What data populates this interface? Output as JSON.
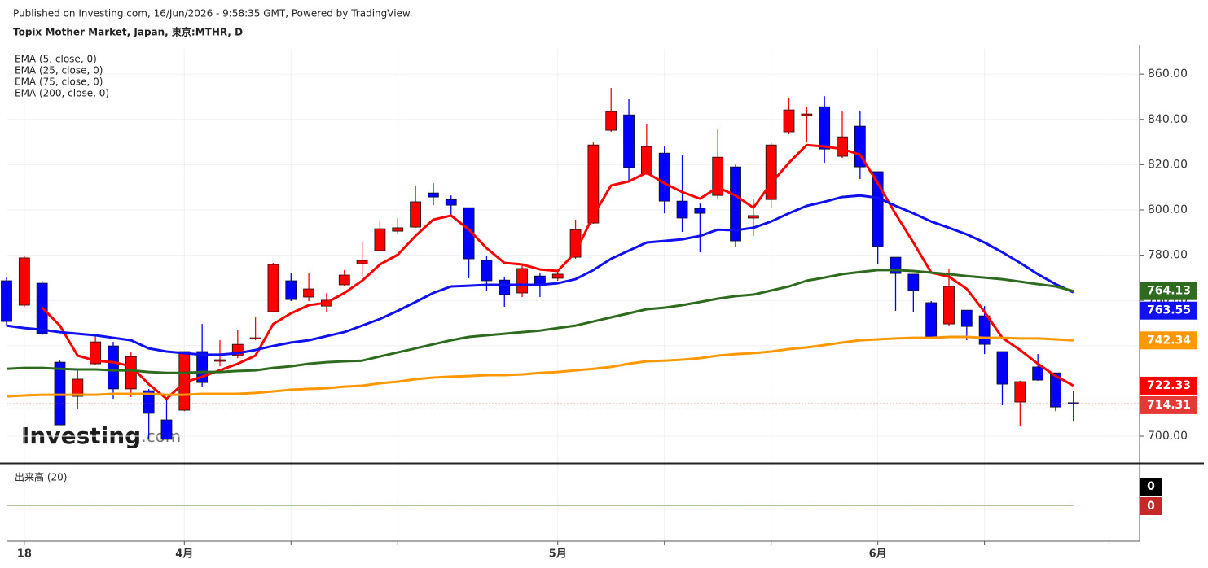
{
  "header": {
    "published": "Published on Investing.com, 16/Jun/2026 - 9:58:35 GMT, Powered by TradingView."
  },
  "watermark": {
    "brand": "Investing",
    "suffix": ".com"
  },
  "chart_data": {
    "type": "candlestick",
    "title": "Topix Mother Market, Japan, 東京:MTHR, D",
    "categories": [
      null,
      "18",
      null,
      null,
      null,
      null,
      null,
      null,
      null,
      null,
      "4月",
      null,
      null,
      null,
      null,
      null,
      null,
      null,
      null,
      null,
      null,
      null,
      null,
      null,
      null,
      null,
      null,
      null,
      null,
      null,
      null,
      "5月",
      null,
      null,
      null,
      null,
      null,
      null,
      null,
      null,
      null,
      null,
      null,
      null,
      null,
      null,
      null,
      null,
      null,
      "6月",
      null,
      null,
      null,
      null,
      null,
      null,
      null,
      null,
      null,
      null,
      null
    ],
    "open": [
      768.7,
      757.9,
      767.6,
      732.7,
      717.6,
      732.0,
      739.9,
      720.9,
      720.1,
      707.2,
      711.5,
      737.4,
      733.1,
      735.6,
      743.5,
      755.0,
      768.7,
      761.5,
      757.5,
      766.9,
      776.2,
      782.0,
      790.6,
      792.4,
      807.5,
      804.6,
      801.0,
      777.7,
      769.0,
      763.3,
      770.8,
      769.8,
      779.1,
      794.2,
      835.2,
      842.0,
      816.1,
      825.1,
      803.9,
      800.7,
      806.4,
      819.0,
      796.4,
      804.6,
      834.5,
      841.7,
      845.6,
      823.7,
      837.0,
      816.9,
      779.1,
      771.6,
      759.0,
      749.6,
      755.7,
      753.2,
      737.4,
      715.1,
      730.6,
      728.0,
      714.8
    ],
    "high": [
      770.5,
      779.5,
      768.7,
      733.4,
      729.1,
      744.2,
      741.7,
      737.4,
      720.9,
      716.5,
      737.4,
      749.6,
      742.4,
      747.1,
      752.5,
      776.6,
      772.3,
      772.3,
      763.3,
      773.4,
      785.6,
      795.3,
      796.4,
      810.8,
      811.8,
      806.4,
      801.0,
      779.5,
      770.5,
      775.9,
      771.9,
      773.0,
      795.7,
      829.8,
      853.9,
      848.9,
      838.1,
      828.0,
      824.4,
      802.8,
      835.9,
      820.0,
      804.6,
      829.5,
      849.6,
      845.3,
      850.3,
      843.5,
      843.5,
      816.9,
      779.1,
      771.6,
      759.7,
      774.1,
      755.7,
      757.5,
      737.4,
      724.5,
      736.3,
      728.0,
      719.8
    ],
    "low": [
      748.9,
      757.2,
      744.6,
      705.0,
      712.2,
      731.6,
      716.5,
      717.3,
      698.6,
      698.6,
      711.1,
      721.9,
      730.9,
      734.5,
      742.4,
      754.7,
      759.7,
      759.7,
      754.7,
      766.2,
      770.5,
      781.6,
      789.2,
      792.1,
      802.1,
      797.5,
      769.8,
      764.0,
      757.2,
      761.5,
      761.5,
      768.7,
      778.4,
      793.9,
      834.5,
      812.2,
      815.4,
      798.5,
      790.3,
      781.3,
      804.6,
      783.8,
      788.5,
      800.7,
      833.4,
      829.8,
      820.8,
      823.0,
      813.6,
      775.9,
      755.4,
      755.0,
      743.5,
      748.9,
      742.4,
      736.3,
      713.7,
      704.7,
      724.5,
      711.1,
      706.8
    ],
    "close": [
      750.7,
      778.8,
      745.3,
      705.0,
      725.2,
      741.7,
      720.9,
      735.2,
      710.1,
      698.6,
      737.4,
      723.7,
      733.8,
      740.6,
      743.5,
      775.9,
      760.4,
      765.1,
      760.1,
      771.2,
      777.7,
      791.7,
      792.1,
      803.6,
      805.7,
      802.1,
      778.4,
      768.7,
      762.6,
      774.1,
      766.9,
      771.6,
      791.3,
      828.7,
      843.5,
      818.7,
      828.0,
      803.9,
      796.4,
      798.5,
      823.3,
      786.3,
      797.5,
      828.7,
      844.2,
      842.4,
      826.9,
      832.3,
      819.0,
      783.8,
      771.9,
      764.4,
      743.9,
      766.2,
      748.5,
      740.6,
      723.0,
      724.1,
      724.8,
      712.9,
      714.31
    ],
    "up_color": "#ff0000",
    "down_color": "#0000ff",
    "last_price_color": "#e53935",
    "lines": [
      {
        "name": "EMA (5, close, 0)",
        "color": "#ff0000",
        "values": [
          null,
          null,
          756.8,
          748.9,
          735.6,
          733.4,
          732.7,
          730.9,
          723.0,
          716.5,
          723.7,
          726.3,
          729.1,
          732.0,
          735.6,
          749.6,
          754.3,
          757.9,
          759.0,
          763.3,
          768.7,
          775.9,
          780.2,
          788.5,
          795.7,
          797.5,
          791.3,
          783.1,
          776.6,
          775.9,
          773.7,
          773.0,
          781.3,
          797.5,
          810.8,
          812.6,
          816.5,
          811.8,
          807.9,
          805.0,
          810.0,
          806.4,
          801.0,
          811.8,
          820.8,
          828.7,
          828.0,
          826.9,
          824.4,
          811.8,
          798.2,
          785.6,
          772.3,
          770.5,
          765.1,
          755.0,
          743.5,
          738.1,
          732.0,
          726.6,
          722.33
        ]
      },
      {
        "name": "EMA (25, close, 0)",
        "color": "#1010f0",
        "values": [
          748.9,
          747.8,
          747.1,
          746.0,
          745.3,
          744.6,
          743.5,
          742.4,
          738.8,
          737.4,
          736.7,
          736.0,
          736.0,
          736.7,
          738.1,
          739.9,
          741.4,
          742.4,
          744.2,
          746.0,
          748.9,
          751.8,
          755.4,
          759.3,
          763.3,
          766.2,
          766.5,
          766.9,
          766.9,
          766.9,
          766.9,
          767.6,
          769.4,
          773.4,
          778.4,
          782.0,
          785.6,
          786.3,
          787.0,
          788.5,
          791.3,
          791.0,
          792.1,
          794.9,
          798.5,
          801.8,
          803.6,
          805.7,
          806.4,
          805.4,
          801.8,
          798.5,
          794.9,
          792.1,
          789.2,
          785.6,
          781.3,
          776.6,
          771.6,
          767.2,
          763.55
        ]
      },
      {
        "name": "EMA (75, close, 0)",
        "color": "#2e6b1e",
        "values": [
          729.8,
          730.2,
          730.2,
          729.8,
          729.5,
          729.5,
          729.1,
          729.1,
          728.4,
          728.0,
          728.0,
          728.4,
          728.4,
          728.8,
          729.1,
          730.2,
          730.9,
          732.0,
          732.7,
          733.1,
          733.4,
          735.2,
          737.0,
          738.8,
          740.6,
          742.4,
          743.9,
          744.6,
          745.3,
          746.0,
          746.7,
          747.8,
          748.9,
          750.7,
          752.5,
          754.3,
          756.1,
          756.8,
          757.9,
          759.3,
          760.8,
          761.9,
          762.6,
          764.4,
          766.2,
          768.7,
          770.1,
          771.6,
          772.6,
          773.4,
          773.4,
          773.0,
          772.3,
          771.6,
          770.8,
          770.1,
          769.4,
          768.3,
          767.2,
          766.2,
          764.13
        ]
      },
      {
        "name": "EMA (200, close, 0)",
        "color": "#ff9800",
        "values": [
          717.6,
          718.0,
          718.3,
          718.3,
          718.3,
          718.3,
          718.7,
          718.7,
          718.7,
          718.3,
          718.3,
          718.7,
          718.7,
          718.7,
          719.1,
          719.8,
          720.5,
          720.9,
          721.2,
          721.9,
          722.3,
          723.4,
          724.1,
          725.2,
          725.9,
          726.3,
          726.6,
          727.0,
          727.0,
          727.3,
          728.0,
          728.4,
          729.1,
          729.8,
          730.6,
          732.0,
          733.1,
          733.4,
          733.8,
          734.5,
          735.6,
          736.3,
          736.7,
          737.4,
          738.5,
          739.2,
          740.3,
          741.4,
          742.4,
          742.8,
          743.2,
          743.5,
          743.5,
          743.9,
          743.9,
          743.5,
          743.5,
          743.2,
          743.2,
          742.8,
          742.34
        ]
      }
    ],
    "ylim": [
      688.5,
      871.2
    ],
    "yticks": [
      {
        "value": 700,
        "label": "700.00"
      },
      {
        "value": 720,
        "label": "720.00"
      },
      {
        "value": 740,
        "label": "740.00"
      },
      {
        "value": 760,
        "label": "760.00"
      },
      {
        "value": 780,
        "label": "780.00"
      },
      {
        "value": 800,
        "label": "800.00"
      },
      {
        "value": 820,
        "label": "820.00"
      },
      {
        "value": 840,
        "label": "840.00"
      },
      {
        "value": 860,
        "label": "860.00"
      }
    ],
    "xgrid": [
      1,
      10,
      16,
      22,
      31,
      37,
      43,
      49,
      55,
      62
    ],
    "grid": true,
    "volume": {
      "name": "出来高 (20)",
      "color": "#c62828",
      "ma_color": "#000000",
      "values": [
        0,
        0,
        0,
        0,
        0,
        0,
        0,
        0,
        0,
        0,
        0,
        0,
        0,
        0,
        0,
        0,
        0,
        0,
        0,
        0,
        0,
        0,
        0,
        0,
        0,
        0,
        0,
        0,
        0,
        0,
        0,
        0,
        0,
        0,
        0,
        0,
        0,
        0,
        0,
        0,
        0,
        0,
        0,
        0,
        0,
        0,
        0,
        0,
        0,
        0,
        0,
        0,
        0,
        0,
        0,
        0,
        0,
        0,
        0,
        0,
        0
      ],
      "ma_values": [
        0,
        0,
        0,
        0,
        0,
        0,
        0,
        0,
        0,
        0,
        0,
        0,
        0,
        0,
        0,
        0,
        0,
        0,
        0,
        0,
        0,
        0,
        0,
        0,
        0,
        0,
        0,
        0,
        0,
        0,
        0,
        0,
        0,
        0,
        0,
        0,
        0,
        0,
        0,
        0,
        0,
        0,
        0,
        0,
        0,
        0,
        0,
        0,
        0,
        0,
        0,
        0,
        0,
        0,
        0,
        0,
        0,
        0,
        0,
        0,
        0
      ]
    }
  }
}
